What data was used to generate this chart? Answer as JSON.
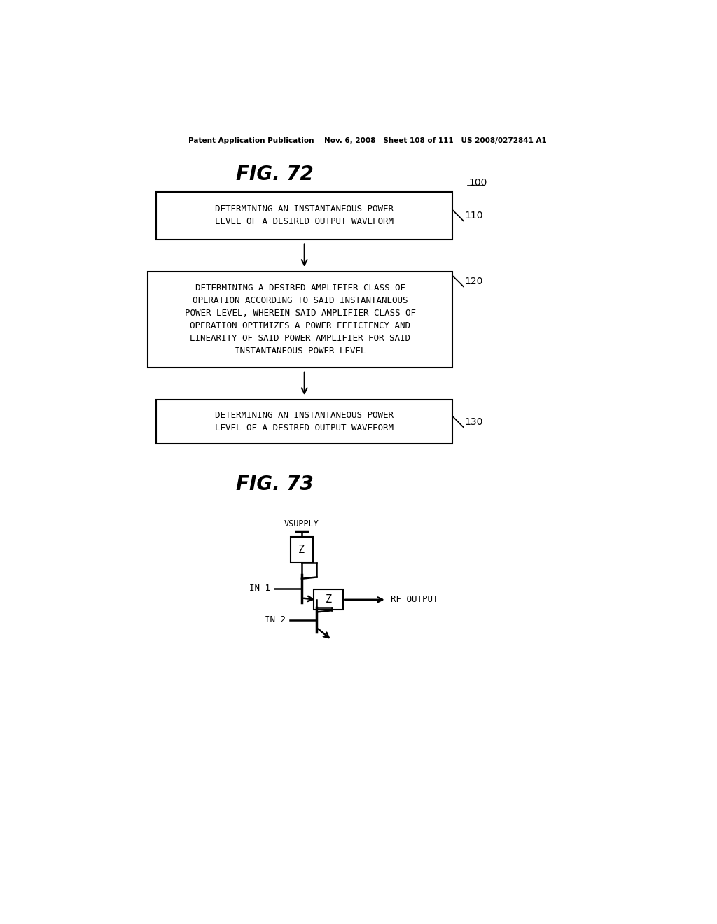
{
  "bg_color": "#ffffff",
  "header_text": "Patent Application Publication    Nov. 6, 2008   Sheet 108 of 111   US 2008/0272841 A1",
  "fig72_title": "FIG. 72",
  "fig73_title": "FIG. 73",
  "ref_100": "100",
  "ref_110": "110",
  "ref_120": "120",
  "ref_130": "130",
  "box1_text": "DETERMINING AN INSTANTANEOUS POWER\nLEVEL OF A DESIRED OUTPUT WAVEFORM",
  "box2_text": "DETERMINING A DESIRED AMPLIFIER CLASS OF\nOPERATION ACCORDING TO SAID INSTANTANEOUS\nPOWER LEVEL, WHEREIN SAID AMPLIFIER CLASS OF\nOPERATION OPTIMIZES A POWER EFFICIENCY AND\nLINEARITY OF SAID POWER AMPLIFIER FOR SAID\nINSTANTANEOUS POWER LEVEL",
  "box3_text": "DETERMINING AN INSTANTANEOUS POWER\nLEVEL OF A DESIRED OUTPUT WAVEFORM",
  "vsupply_label": "VSUPPLY",
  "z1_label": "Z",
  "z2_label": "Z",
  "in1_label": "IN 1",
  "in2_label": "IN 2",
  "rf_output_label": "RF OUTPUT"
}
